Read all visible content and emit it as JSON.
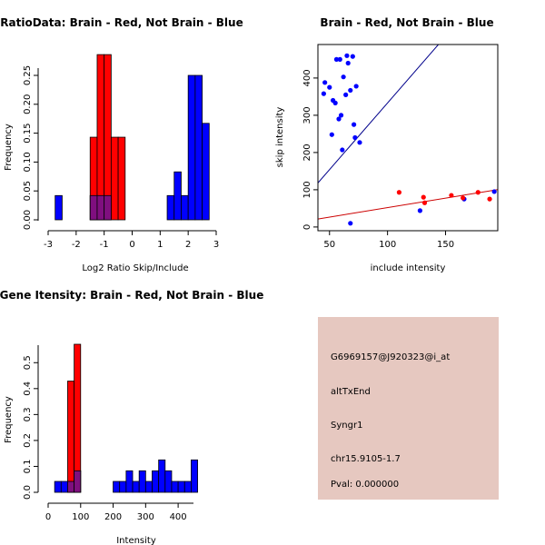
{
  "colors": {
    "brain": "#ff0000",
    "not_brain": "#0000ff",
    "overlap": "#7f0f7f",
    "info_bg": "#e6c8c0",
    "pval_text": "#990000"
  },
  "chart_data": [
    {
      "type": "histogram",
      "title": "RatioData: Brain - Red, Not Brain - Blue",
      "xlabel": "Log2 Ratio Skip/Include",
      "ylabel": "Frequency",
      "xlim": [
        -3,
        3
      ],
      "ylim": [
        0,
        0.25
      ],
      "xticks": [
        -3,
        -2,
        -1,
        0,
        1,
        2,
        3
      ],
      "yticks": [
        0.0,
        0.05,
        0.1,
        0.15,
        0.2,
        0.25
      ],
      "ytick_labels": [
        "0.00",
        "0.05",
        "0.10",
        "0.15",
        "0.20",
        "0.25"
      ],
      "bin_width": 0.25,
      "series": [
        {
          "name": "Not Brain",
          "color": "blue",
          "bins": [
            [
              -2.75,
              -2.5,
              0.042
            ],
            [
              -1.5,
              -1.25,
              0.042
            ],
            [
              -1.25,
              -1.0,
              0.042
            ],
            [
              -1.0,
              -0.75,
              0.042
            ],
            [
              1.25,
              1.5,
              0.042
            ],
            [
              1.5,
              1.75,
              0.083
            ],
            [
              1.75,
              2.0,
              0.042
            ],
            [
              2.0,
              2.25,
              0.25
            ],
            [
              2.25,
              2.5,
              0.25
            ],
            [
              2.5,
              2.75,
              0.167
            ]
          ]
        },
        {
          "name": "Brain",
          "color": "red",
          "bins": [
            [
              -1.5,
              -1.25,
              0.143
            ],
            [
              -1.25,
              -1.0,
              0.286
            ],
            [
              -1.0,
              -0.75,
              0.286
            ],
            [
              -0.75,
              -0.5,
              0.143
            ],
            [
              -0.5,
              -0.25,
              0.143
            ]
          ]
        }
      ]
    },
    {
      "type": "scatter",
      "title": "Brain - Red, Not Brain - Blue",
      "xlabel": "include intensity",
      "ylabel": "skip intensity",
      "xlim": [
        40,
        195
      ],
      "ylim": [
        -10,
        490
      ],
      "xticks": [
        50,
        100,
        150
      ],
      "yticks": [
        0,
        100,
        200,
        300,
        400
      ],
      "series": [
        {
          "name": "Not Brain",
          "color": "blue",
          "points": [
            [
              46,
              388
            ],
            [
              45,
              358
            ],
            [
              50,
              375
            ],
            [
              52,
              248
            ],
            [
              53,
              340
            ],
            [
              55,
              333
            ],
            [
              56,
              450
            ],
            [
              58,
              290
            ],
            [
              59,
              450
            ],
            [
              60,
              300
            ],
            [
              61,
              207
            ],
            [
              62,
              403
            ],
            [
              64,
              355
            ],
            [
              65,
              460
            ],
            [
              66,
              440
            ],
            [
              68,
              367
            ],
            [
              70,
              458
            ],
            [
              71,
              275
            ],
            [
              72,
              240
            ],
            [
              73,
              378
            ],
            [
              76,
              227
            ],
            [
              68,
              10
            ],
            [
              128,
              44
            ],
            [
              166,
              75
            ],
            [
              192,
              95
            ]
          ]
        },
        {
          "name": "Brain",
          "color": "red",
          "points": [
            [
              110,
              93
            ],
            [
              131,
              80
            ],
            [
              132,
              65
            ],
            [
              155,
              85
            ],
            [
              165,
              78
            ],
            [
              178,
              93
            ],
            [
              188,
              75
            ]
          ]
        }
      ],
      "fit_lines": [
        {
          "name": "Not Brain fit",
          "color": "blue",
          "intercept": -25,
          "slope": 3.58
        },
        {
          "name": "Brain fit",
          "color": "red",
          "intercept": 1,
          "slope": 0.51
        }
      ]
    },
    {
      "type": "histogram",
      "title": "Gene Itensity: Brain - Red, Not Brain - Blue",
      "xlabel": "Intensity",
      "ylabel": "Frequency",
      "xlim": [
        0,
        450
      ],
      "ylim": [
        0,
        0.55
      ],
      "xticks": [
        0,
        100,
        200,
        300,
        400
      ],
      "yticks": [
        0.0,
        0.1,
        0.2,
        0.3,
        0.4,
        0.5
      ],
      "ytick_labels": [
        "0.0",
        "0.1",
        "0.2",
        "0.3",
        "0.4",
        "0.5"
      ],
      "bin_width": 20,
      "series": [
        {
          "name": "Not Brain",
          "color": "blue",
          "bins": [
            [
              20,
              40,
              0.042
            ],
            [
              40,
              60,
              0.042
            ],
            [
              60,
              80,
              0.042
            ],
            [
              80,
              100,
              0.083
            ],
            [
              200,
              220,
              0.042
            ],
            [
              220,
              240,
              0.042
            ],
            [
              240,
              260,
              0.083
            ],
            [
              260,
              280,
              0.042
            ],
            [
              280,
              300,
              0.083
            ],
            [
              300,
              320,
              0.042
            ],
            [
              320,
              340,
              0.083
            ],
            [
              340,
              360,
              0.125
            ],
            [
              360,
              380,
              0.083
            ],
            [
              380,
              400,
              0.042
            ],
            [
              400,
              420,
              0.042
            ],
            [
              420,
              440,
              0.042
            ],
            [
              440,
              460,
              0.125
            ]
          ]
        },
        {
          "name": "Brain",
          "color": "red",
          "bins": [
            [
              60,
              80,
              0.429
            ],
            [
              80,
              100,
              0.571
            ]
          ]
        }
      ]
    }
  ],
  "info_panel": {
    "probe": "G6969157@J920323@i_at",
    "event_type": "altTxEnd",
    "gene": "Syngr1",
    "location": "chr15.9105-1.7",
    "pval": "Pval: 0.000000"
  }
}
